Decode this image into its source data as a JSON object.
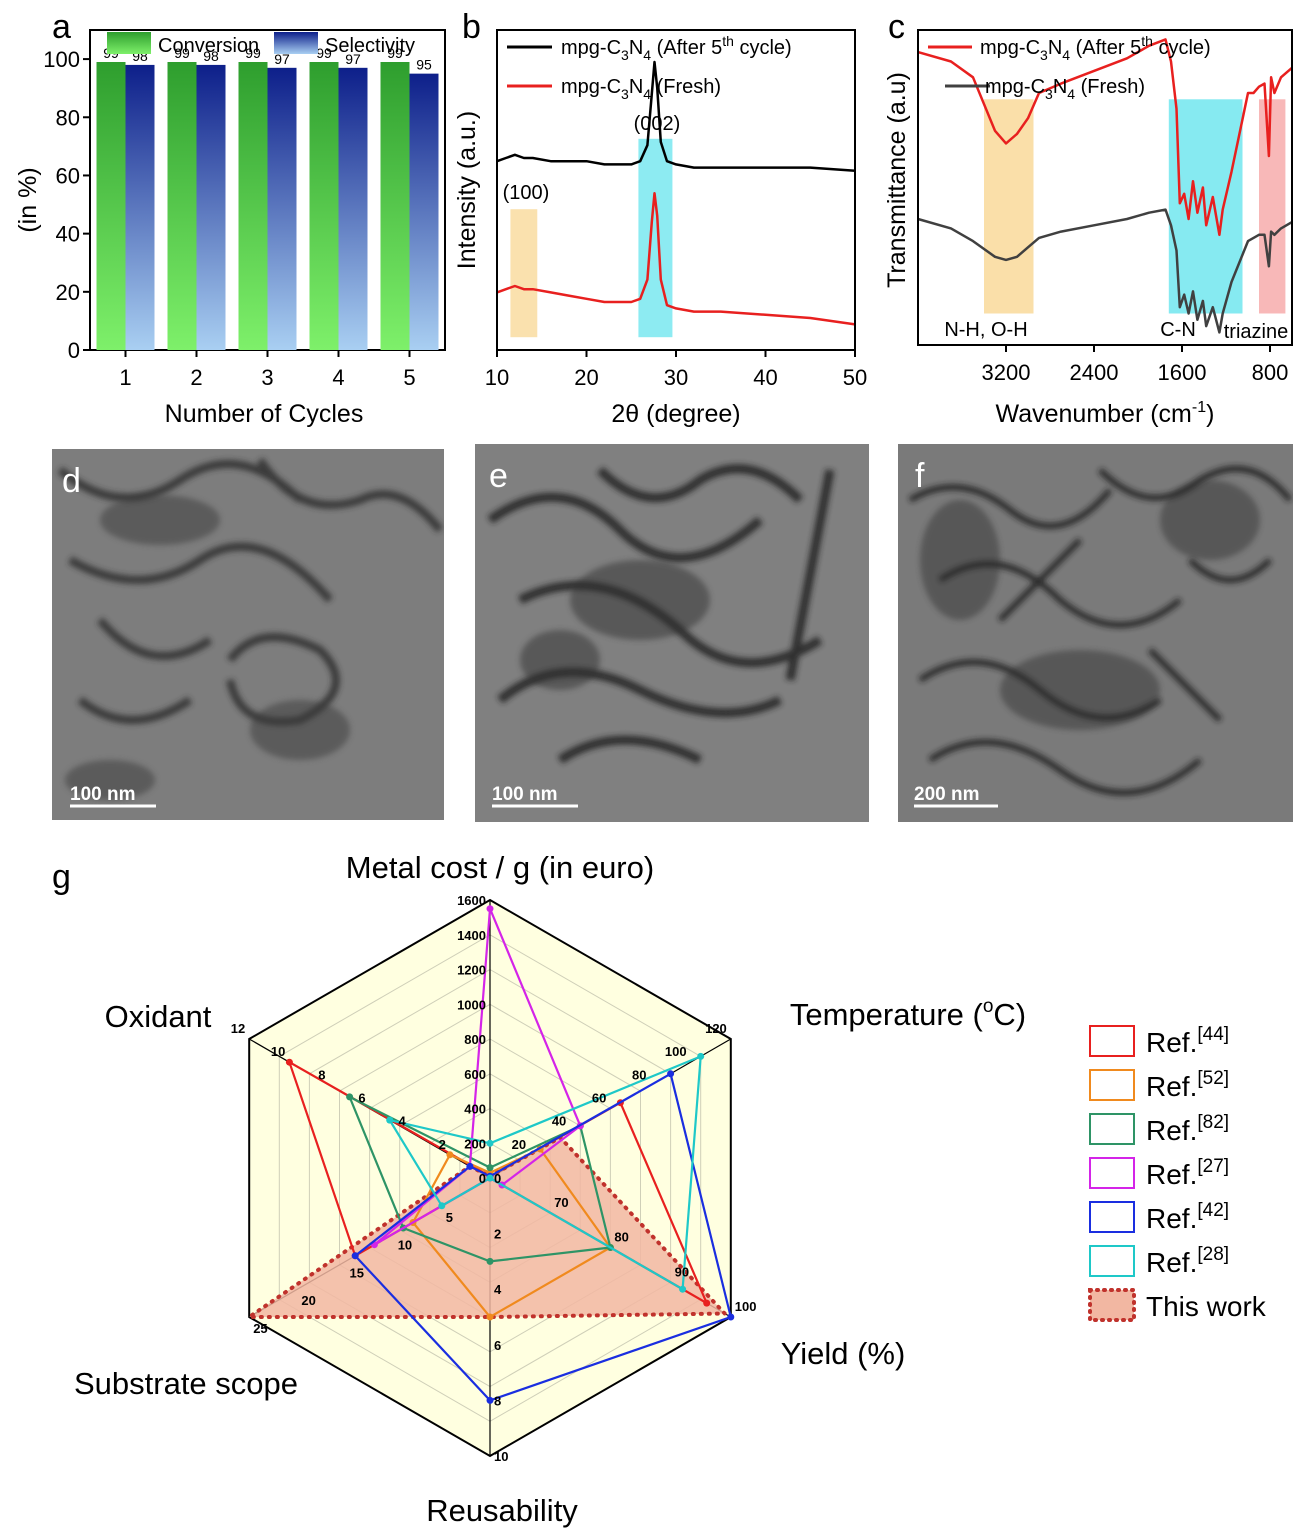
{
  "panels": {
    "a": "a",
    "b": "b",
    "c": "c",
    "d": "d",
    "e": "e",
    "f": "f",
    "g": "g"
  },
  "chart_data": [
    {
      "id": "a",
      "type": "bar",
      "xlabel": "Number of Cycles",
      "ylabel": "(in %)",
      "categories": [
        "1",
        "2",
        "3",
        "4",
        "5"
      ],
      "ylim": [
        0,
        110
      ],
      "yticks": [
        "0",
        "20",
        "40",
        "60",
        "80",
        "100"
      ],
      "series": [
        {
          "name": "Conversion",
          "values": [
            99,
            99,
            99,
            99,
            99
          ],
          "color": "#2e9e2e",
          "color_light": "#7ef06a"
        },
        {
          "name": "Selectivity",
          "values": [
            98,
            98,
            97,
            97,
            95
          ],
          "color": "#0d1f8a",
          "color_light": "#a9cff2"
        }
      ],
      "data_labels": true
    },
    {
      "id": "b",
      "type": "line",
      "xlabel": "2θ (degree)",
      "ylabel": "Intensity (a.u.)",
      "xlim": [
        10,
        50
      ],
      "xticks": [
        "10",
        "20",
        "30",
        "40",
        "50"
      ],
      "series": [
        {
          "name_parts": [
            "mpg-C",
            "3",
            "N",
            "4",
            " (After 5",
            "th",
            " cycle)"
          ],
          "color": "#000000",
          "x": [
            10,
            11,
            12,
            13,
            14,
            16,
            18,
            20,
            22,
            24,
            25,
            26,
            26.8,
            27.3,
            27.6,
            27.9,
            28.3,
            29,
            30,
            32,
            35,
            40,
            45,
            50
          ],
          "y": [
            0.59,
            0.6,
            0.61,
            0.6,
            0.6,
            0.59,
            0.59,
            0.59,
            0.58,
            0.58,
            0.58,
            0.59,
            0.64,
            0.8,
            0.9,
            0.82,
            0.65,
            0.59,
            0.58,
            0.57,
            0.57,
            0.57,
            0.57,
            0.56
          ]
        },
        {
          "name_parts": [
            "mpg-C",
            "3",
            "N",
            "4",
            " (Fresh)"
          ],
          "color": "#e8201f",
          "x": [
            10,
            11,
            12,
            13,
            14,
            16,
            18,
            20,
            22,
            24,
            25,
            26,
            26.8,
            27.3,
            27.6,
            27.9,
            28.3,
            29,
            30,
            32,
            35,
            40,
            45,
            50
          ],
          "y": [
            0.18,
            0.19,
            0.2,
            0.19,
            0.19,
            0.18,
            0.17,
            0.16,
            0.15,
            0.15,
            0.15,
            0.16,
            0.22,
            0.4,
            0.49,
            0.42,
            0.22,
            0.14,
            0.13,
            0.12,
            0.12,
            0.11,
            0.1,
            0.08
          ]
        }
      ],
      "highlights": [
        {
          "label": "(100)",
          "from": 11.5,
          "to": 14.5,
          "color": "#f9dca0"
        },
        {
          "label": "(002)",
          "from": 25.8,
          "to": 29.6,
          "color": "#79e8f0"
        }
      ]
    },
    {
      "id": "c",
      "type": "line",
      "xlabel_parts": [
        "Wavenumber (cm",
        "-1",
        ")"
      ],
      "ylabel": "Transmittance (a.u)",
      "xlim": [
        4000,
        600
      ],
      "xticks": [
        "3200",
        "2400",
        "1600",
        "800"
      ],
      "series": [
        {
          "name_parts": [
            "mpg-C",
            "3",
            "N",
            "4",
            " (After 5",
            "th",
            " cycle)"
          ],
          "color": "#e8201f",
          "x": [
            4000,
            3700,
            3500,
            3300,
            3200,
            3100,
            3000,
            2900,
            2700,
            2400,
            2100,
            1900,
            1750,
            1700,
            1650,
            1620,
            1580,
            1540,
            1500,
            1460,
            1410,
            1380,
            1320,
            1260,
            1230,
            1150,
            1000,
            950,
            900,
            850,
            810,
            790,
            760,
            700,
            600
          ],
          "y": [
            0.93,
            0.9,
            0.85,
            0.68,
            0.64,
            0.67,
            0.72,
            0.8,
            0.83,
            0.87,
            0.91,
            0.95,
            0.97,
            0.9,
            0.75,
            0.45,
            0.48,
            0.4,
            0.52,
            0.42,
            0.5,
            0.38,
            0.47,
            0.35,
            0.43,
            0.55,
            0.8,
            0.8,
            0.82,
            0.83,
            0.6,
            0.85,
            0.8,
            0.85,
            0.88
          ]
        },
        {
          "name_parts": [
            "mpg-C",
            "3",
            "N",
            "4",
            " (Fresh)"
          ],
          "color": "#404040",
          "x": [
            4000,
            3700,
            3500,
            3300,
            3200,
            3100,
            3000,
            2900,
            2700,
            2400,
            2100,
            1900,
            1750,
            1700,
            1650,
            1620,
            1580,
            1540,
            1500,
            1460,
            1410,
            1380,
            1320,
            1260,
            1230,
            1150,
            1000,
            950,
            900,
            850,
            810,
            790,
            760,
            700,
            600
          ],
          "y": [
            0.4,
            0.37,
            0.33,
            0.28,
            0.27,
            0.28,
            0.31,
            0.34,
            0.36,
            0.38,
            0.4,
            0.42,
            0.43,
            0.38,
            0.3,
            0.12,
            0.16,
            0.1,
            0.17,
            0.08,
            0.14,
            0.06,
            0.12,
            0.04,
            0.1,
            0.2,
            0.33,
            0.34,
            0.35,
            0.35,
            0.25,
            0.36,
            0.35,
            0.37,
            0.39
          ]
        }
      ],
      "highlights": [
        {
          "label": "N-H, O-H",
          "from": 3400,
          "to": 2950,
          "color": "#f9dca0"
        },
        {
          "label": "C-N",
          "from": 1720,
          "to": 1050,
          "color": "#79e8f0"
        },
        {
          "label": "triazine",
          "from": 900,
          "to": 660,
          "color": "#f7b0b0"
        }
      ]
    },
    {
      "id": "g",
      "type": "radar",
      "axes": [
        {
          "label": "Metal cost / g (in euro)",
          "max": 1600,
          "ticks": [
            "0",
            "200",
            "400",
            "600",
            "800",
            "1000",
            "1200",
            "1400",
            "1600"
          ]
        },
        {
          "label_parts": [
            "Temperature (",
            "o",
            "C)"
          ],
          "min": 0,
          "max": 120,
          "ticks": [
            "20",
            "40",
            "60",
            "80",
            "100",
            "120"
          ]
        },
        {
          "label": "Yield (%)",
          "min": 60,
          "max": 100,
          "ticks": [
            "70",
            "80",
            "90",
            "100"
          ]
        },
        {
          "label": "Reusability",
          "min": 0,
          "max": 10,
          "ticks": [
            "0",
            "2",
            "4",
            "6",
            "8",
            "10"
          ]
        },
        {
          "label": "Substrate scope",
          "min": 0,
          "max": 25,
          "ticks": [
            "5",
            "10",
            "15",
            "20",
            "25"
          ]
        },
        {
          "label": "Oxidant",
          "min": 0,
          "max": 12,
          "ticks": [
            "2",
            "4",
            "6",
            "8",
            "10",
            "12"
          ]
        }
      ],
      "series": [
        {
          "name": "Ref.",
          "ref": "[44]",
          "color": "#e8201f",
          "values": [
            10,
            65,
            96,
            0,
            14,
            10
          ]
        },
        {
          "name": "Ref.",
          "ref": "[52]",
          "color": "#f08a1e",
          "values": [
            30,
            25,
            80,
            5,
            8,
            2
          ]
        },
        {
          "name": "Ref.",
          "ref": "[82]",
          "color": "#2e9466",
          "values": [
            60,
            45,
            80,
            3,
            9,
            7
          ]
        },
        {
          "name": "Ref.",
          "ref": "[27]",
          "color": "#d424e8",
          "values": [
            1550,
            45,
            62,
            0,
            12,
            1
          ]
        },
        {
          "name": "Ref.",
          "ref": "[42]",
          "color": "#1a2ee0",
          "values": [
            10,
            90,
            100,
            8,
            14,
            1
          ]
        },
        {
          "name": "Ref.",
          "ref": "[28]",
          "color": "#1ec8c8",
          "values": [
            200,
            105,
            92,
            0,
            5,
            5
          ]
        },
        {
          "name": "This work",
          "color": "#c0322c",
          "fill": "#f2b7a2",
          "values": [
            10,
            35,
            99,
            5,
            25,
            1
          ]
        }
      ]
    }
  ],
  "tem": [
    {
      "letter": "d",
      "scale": "100 nm"
    },
    {
      "letter": "e",
      "scale": "100 nm"
    },
    {
      "letter": "f",
      "scale": "200 nm"
    }
  ]
}
